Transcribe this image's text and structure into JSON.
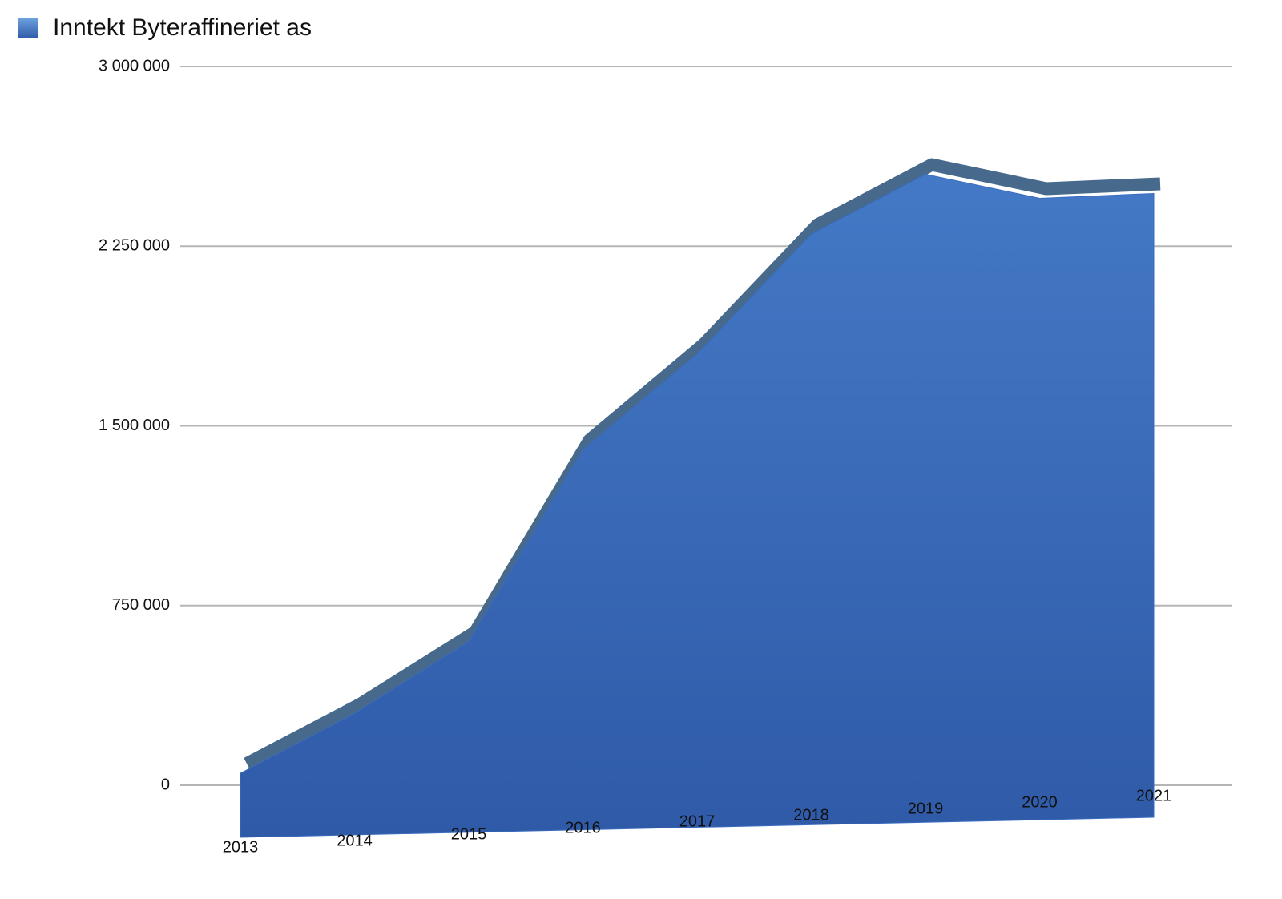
{
  "chart_data": {
    "type": "area",
    "categories": [
      "2013",
      "2014",
      "2015",
      "2016",
      "2017",
      "2018",
      "2019",
      "2020",
      "2021"
    ],
    "series": [
      {
        "name": "Inntekt Byteraffineriet as",
        "color": "#3a6cbf",
        "values": [
          50000,
          300000,
          600000,
          1400000,
          1800000,
          2300000,
          2550000,
          2450000,
          2470000
        ]
      }
    ],
    "ylim": [
      0,
      3000000
    ],
    "yticks": [
      0,
      {
        "value": 750000,
        "label": "750 000"
      },
      {
        "value": 1500000,
        "label": "1 500 000"
      },
      {
        "value": 2250000,
        "label": "2 250 000"
      },
      {
        "value": 3000000,
        "label": "3 000 000"
      }
    ],
    "grid": true,
    "legend": "top-left"
  }
}
